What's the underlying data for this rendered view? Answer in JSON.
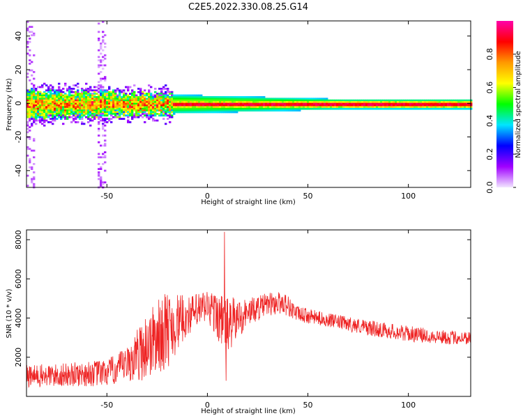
{
  "title": "C2E5.2022.330.08.25.G14",
  "chart_data": [
    {
      "type": "heatmap",
      "xlabel": "Height of straight line (km)",
      "ylabel": "Frequency (Hz)",
      "xlim": [
        -90,
        131
      ],
      "ylim": [
        -50,
        49
      ],
      "x_ticks": [
        -50,
        0,
        50,
        100
      ],
      "y_ticks": [
        -40,
        -20,
        0,
        20,
        40
      ],
      "description_values": {
        "signal_band_center_hz": 0,
        "signal_band_halfwidth_hz_start": 8,
        "signal_band_halfwidth_hz_end": 3,
        "vertical_noise_x": -53
      },
      "colorbar": {
        "label": "Normalized spectral amplitude",
        "range": [
          0,
          1
        ],
        "ticks": [
          "0.0",
          "0.2",
          "0.4",
          "0.6",
          "0.8"
        ],
        "colors": [
          "#f2e6ff",
          "#a000ff",
          "#0000ff",
          "#00e5ff",
          "#00ff00",
          "#ffff00",
          "#ff9900",
          "#ff0000",
          "#ff00aa"
        ]
      }
    },
    {
      "type": "line",
      "xlabel": "Height of straight line (km)",
      "ylabel": "SNR (10 * v/v)",
      "xlim": [
        -90,
        131
      ],
      "ylim": [
        0,
        8500
      ],
      "x_ticks": [
        -50,
        0,
        50,
        100
      ],
      "y_ticks": [
        2000,
        4000,
        6000,
        8000
      ],
      "color": "#ee2222",
      "trend": {
        "x": [
          -90,
          -70,
          -50,
          -40,
          -30,
          -20,
          -10,
          0,
          10,
          20,
          30,
          38,
          45,
          60,
          80,
          100,
          120,
          131
        ],
        "y": [
          1000,
          1100,
          1200,
          1600,
          2600,
          3400,
          4100,
          4600,
          3600,
          4300,
          4700,
          4800,
          4200,
          3900,
          3500,
          3200,
          3000,
          3000
        ],
        "amplitude": [
          600,
          600,
          700,
          900,
          1800,
          2000,
          1000,
          900,
          1500,
          700,
          600,
          600,
          400,
          350,
          400,
          400,
          350,
          350
        ]
      },
      "spikes": [
        {
          "x": 8.5,
          "y": 8400
        },
        {
          "x": 9.3,
          "y": 800
        }
      ]
    }
  ]
}
